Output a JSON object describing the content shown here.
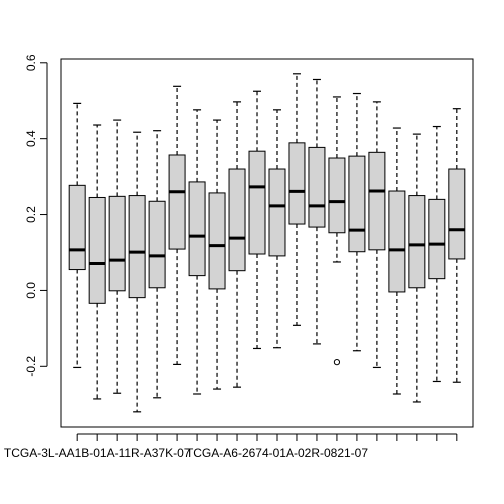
{
  "chart_data": {
    "type": "boxplot",
    "title": "",
    "xlabel": "",
    "ylabel": "",
    "ylim": [
      -0.36,
      0.61
    ],
    "y_ticks": [
      -0.2,
      0.0,
      0.2,
      0.4,
      0.6
    ],
    "y_tick_labels": [
      "-0.2",
      "0.0",
      "0.2",
      "0.4",
      "0.6"
    ],
    "x_tick_labels": [
      {
        "index": 1,
        "label": "TCGA-3L-AA1B-01A-11R-A37K-07"
      },
      {
        "index": 10,
        "label": "TCGA-A6-2674-01A-02R-0821-07"
      }
    ],
    "box_fill": "#d3d3d3",
    "grid": false,
    "boxes": [
      {
        "q1": 0.055,
        "median": 0.107,
        "q3": 0.277,
        "whisker_low": -0.203,
        "whisker_high": 0.493,
        "outliers": []
      },
      {
        "q1": -0.034,
        "median": 0.071,
        "q3": 0.245,
        "whisker_low": -0.286,
        "whisker_high": 0.436,
        "outliers": []
      },
      {
        "q1": -0.001,
        "median": 0.08,
        "q3": 0.248,
        "whisker_low": -0.271,
        "whisker_high": 0.449,
        "outliers": []
      },
      {
        "q1": -0.019,
        "median": 0.101,
        "q3": 0.25,
        "whisker_low": -0.32,
        "whisker_high": 0.417,
        "outliers": []
      },
      {
        "q1": 0.007,
        "median": 0.091,
        "q3": 0.235,
        "whisker_low": -0.283,
        "whisker_high": 0.421,
        "outliers": []
      },
      {
        "q1": 0.109,
        "median": 0.26,
        "q3": 0.357,
        "whisker_low": -0.195,
        "whisker_high": 0.538,
        "outliers": []
      },
      {
        "q1": 0.039,
        "median": 0.143,
        "q3": 0.286,
        "whisker_low": -0.273,
        "whisker_high": 0.476,
        "outliers": []
      },
      {
        "q1": 0.004,
        "median": 0.118,
        "q3": 0.257,
        "whisker_low": -0.26,
        "whisker_high": 0.449,
        "outliers": []
      },
      {
        "q1": 0.052,
        "median": 0.138,
        "q3": 0.32,
        "whisker_low": -0.255,
        "whisker_high": 0.497,
        "outliers": []
      },
      {
        "q1": 0.096,
        "median": 0.273,
        "q3": 0.367,
        "whisker_low": -0.153,
        "whisker_high": 0.525,
        "outliers": []
      },
      {
        "q1": 0.091,
        "median": 0.223,
        "q3": 0.32,
        "whisker_low": -0.151,
        "whisker_high": 0.476,
        "outliers": []
      },
      {
        "q1": 0.175,
        "median": 0.261,
        "q3": 0.389,
        "whisker_low": -0.092,
        "whisker_high": 0.571,
        "outliers": []
      },
      {
        "q1": 0.167,
        "median": 0.223,
        "q3": 0.377,
        "whisker_low": -0.141,
        "whisker_high": 0.556,
        "outliers": []
      },
      {
        "q1": 0.152,
        "median": 0.234,
        "q3": 0.349,
        "whisker_low": 0.075,
        "whisker_high": 0.51,
        "outliers": [
          -0.189
        ]
      },
      {
        "q1": 0.102,
        "median": 0.159,
        "q3": 0.354,
        "whisker_low": -0.159,
        "whisker_high": 0.519,
        "outliers": []
      },
      {
        "q1": 0.107,
        "median": 0.262,
        "q3": 0.364,
        "whisker_low": -0.203,
        "whisker_high": 0.497,
        "outliers": []
      },
      {
        "q1": -0.004,
        "median": 0.107,
        "q3": 0.262,
        "whisker_low": -0.273,
        "whisker_high": 0.428,
        "outliers": []
      },
      {
        "q1": 0.007,
        "median": 0.12,
        "q3": 0.25,
        "whisker_low": -0.294,
        "whisker_high": 0.412,
        "outliers": []
      },
      {
        "q1": 0.031,
        "median": 0.122,
        "q3": 0.24,
        "whisker_low": -0.24,
        "whisker_high": 0.432,
        "outliers": []
      },
      {
        "q1": 0.083,
        "median": 0.16,
        "q3": 0.32,
        "whisker_low": -0.242,
        "whisker_high": 0.479,
        "outliers": []
      }
    ]
  }
}
